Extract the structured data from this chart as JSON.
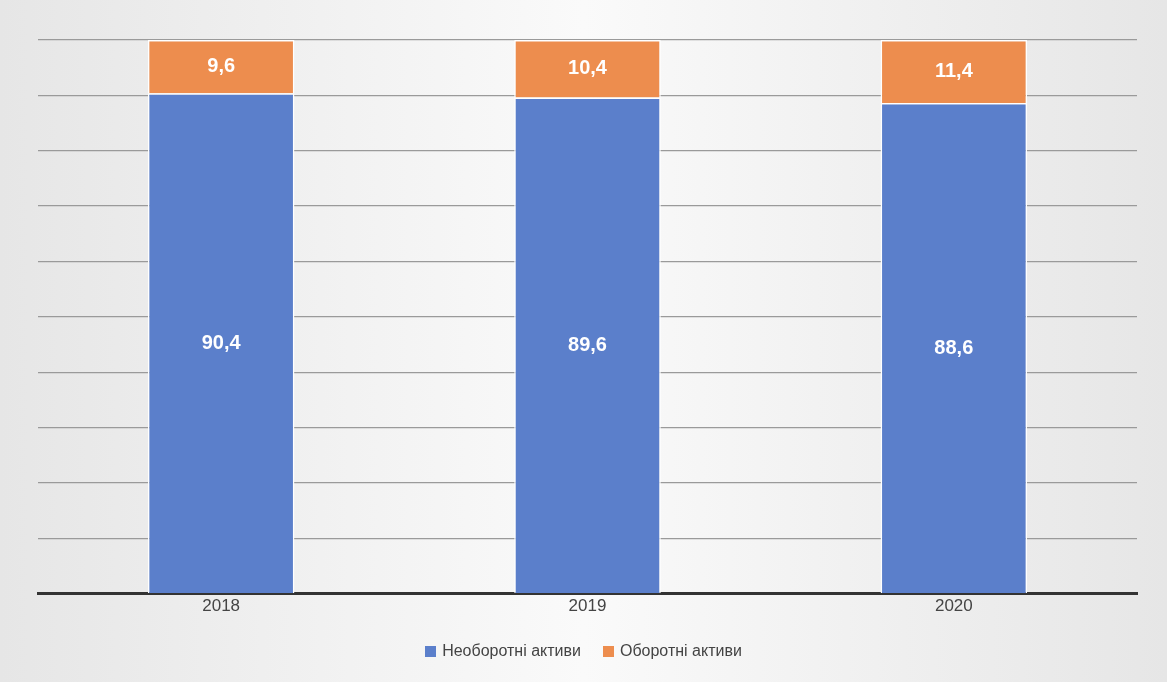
{
  "chart_data": {
    "type": "bar",
    "stacked": true,
    "categories": [
      "2018",
      "2019",
      "2020"
    ],
    "series": [
      {
        "name": "Необоротні активи",
        "color": "#5b7fcb",
        "values": [
          90.4,
          89.6,
          88.6
        ],
        "value_labels": [
          "90,4",
          "89,6",
          "88,6"
        ]
      },
      {
        "name": "Оборотні активи",
        "color": "#ed8d4e",
        "values": [
          9.6,
          10.4,
          11.4
        ],
        "value_labels": [
          "9,6",
          "10,4",
          "11,4"
        ]
      }
    ],
    "tick_labels": "x",
    "grid": "y",
    "legend": "bottom"
  }
}
